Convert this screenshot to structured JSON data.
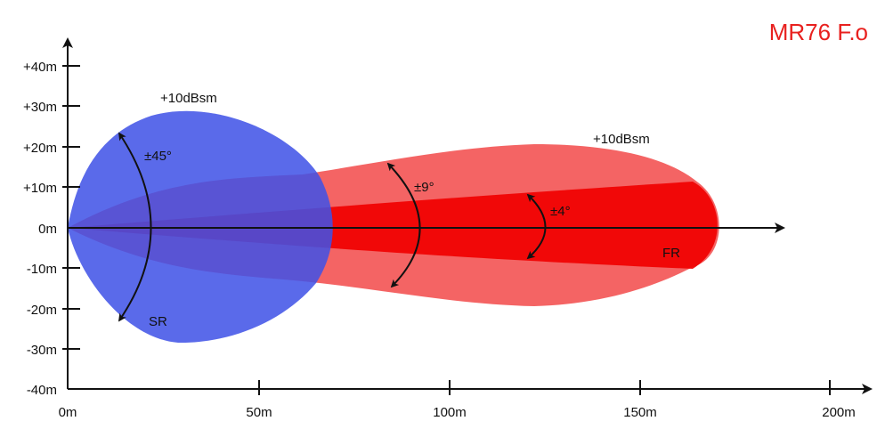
{
  "title": "MR76 F.o",
  "colors": {
    "title": "#e8211f",
    "short_range": "#3f51e6",
    "far_range_outer": "#f24f4f",
    "far_range_core": "#f00000",
    "axis": "#111111"
  },
  "axes": {
    "x_ticks": [
      "0m",
      "50m",
      "100m",
      "150m",
      "200m"
    ],
    "y_ticks": [
      "+40m",
      "+30m",
      "+20m",
      "+10m",
      "0m",
      "-10m",
      "-20m",
      "-30m",
      "-40m"
    ]
  },
  "zones": {
    "short_range": {
      "label": "SR",
      "rcs_label": "+10dBsm",
      "angle_label": "±45°"
    },
    "far_range": {
      "label": "FR",
      "rcs_label": "+10dBsm",
      "angle_wide_label": "±9°",
      "angle_narrow_label": "±4°"
    }
  }
}
